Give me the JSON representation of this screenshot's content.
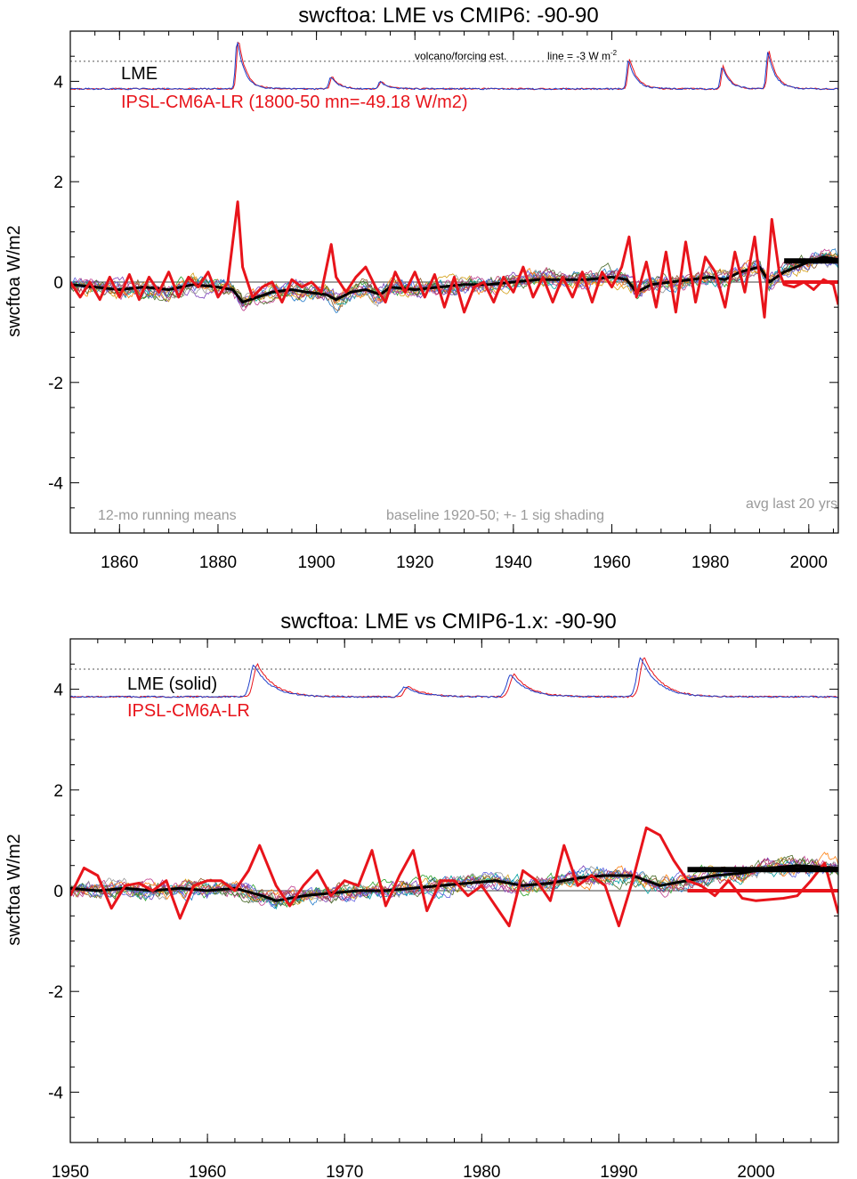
{
  "chart_data": [
    {
      "type": "line",
      "title": "swcftoa: LME vs CMIP6: -90-90",
      "ylabel": "swcftoa W/m2",
      "xlim": [
        1850,
        2006
      ],
      "ylim": [
        -5,
        5
      ],
      "xticks": [
        1860,
        1880,
        1900,
        1920,
        1940,
        1960,
        1980,
        2000
      ],
      "yticks": [
        -4,
        -2,
        0,
        2,
        4
      ],
      "ytick_labels": [
        "-4",
        "-2",
        "0",
        "2",
        "4"
      ],
      "legend": [
        "LME",
        "IPSL-CM6A-LR (1800-50 mn=-49.18 W/m2)"
      ],
      "annotations": {
        "volcano": "volcano/forcing est.",
        "line_note": "line = -3 W m",
        "line_note_sup": "-2",
        "running": "12-mo running means",
        "baseline": "baseline 1920-50; +- 1 sig shading",
        "avg": "avg last 20 yrs"
      },
      "reference_line_y": 4.4,
      "forcing_baseline": 3.85,
      "volcano_peaks": [
        {
          "x": 1884,
          "y": 4.85
        },
        {
          "x": 1903,
          "y": 4.1
        },
        {
          "x": 1913,
          "y": 4.0
        },
        {
          "x": 1963.5,
          "y": 4.45
        },
        {
          "x": 1982.5,
          "y": 4.3
        },
        {
          "x": 1991.8,
          "y": 4.6
        }
      ],
      "lme_mean": {
        "name": "LME",
        "points": [
          [
            1850,
            -0.05
          ],
          [
            1855,
            -0.1
          ],
          [
            1860,
            -0.15
          ],
          [
            1865,
            -0.1
          ],
          [
            1870,
            -0.15
          ],
          [
            1875,
            -0.05
          ],
          [
            1880,
            -0.1
          ],
          [
            1883,
            -0.15
          ],
          [
            1885,
            -0.4
          ],
          [
            1888,
            -0.3
          ],
          [
            1891,
            -0.2
          ],
          [
            1895,
            -0.15
          ],
          [
            1898,
            -0.2
          ],
          [
            1902,
            -0.25
          ],
          [
            1904,
            -0.35
          ],
          [
            1907,
            -0.2
          ],
          [
            1910,
            -0.15
          ],
          [
            1913,
            -0.25
          ],
          [
            1915,
            -0.1
          ],
          [
            1920,
            -0.15
          ],
          [
            1925,
            -0.1
          ],
          [
            1930,
            -0.05
          ],
          [
            1935,
            -0.05
          ],
          [
            1940,
            0.0
          ],
          [
            1945,
            0.05
          ],
          [
            1950,
            0.05
          ],
          [
            1955,
            0.05
          ],
          [
            1960,
            0.1
          ],
          [
            1963,
            0.05
          ],
          [
            1965,
            -0.2
          ],
          [
            1968,
            -0.05
          ],
          [
            1972,
            0.0
          ],
          [
            1976,
            0.05
          ],
          [
            1980,
            0.1
          ],
          [
            1983,
            0.05
          ],
          [
            1986,
            0.2
          ],
          [
            1990,
            0.3
          ],
          [
            1992,
            0.0
          ],
          [
            1995,
            0.2
          ],
          [
            2000,
            0.4
          ],
          [
            2003,
            0.5
          ],
          [
            2006,
            0.45
          ]
        ]
      },
      "ipsl_mean": {
        "name": "IPSL-CM6A-LR (1800-50 mn=-49.18 W/m2)",
        "points": [
          [
            1850,
            0.0
          ],
          [
            1852,
            -0.3
          ],
          [
            1854,
            0.0
          ],
          [
            1856,
            -0.35
          ],
          [
            1858,
            0.1
          ],
          [
            1860,
            -0.3
          ],
          [
            1862,
            0.15
          ],
          [
            1864,
            -0.35
          ],
          [
            1866,
            0.1
          ],
          [
            1868,
            -0.2
          ],
          [
            1870,
            0.2
          ],
          [
            1872,
            -0.3
          ],
          [
            1874,
            0.1
          ],
          [
            1876,
            -0.1
          ],
          [
            1878,
            0.2
          ],
          [
            1880,
            -0.3
          ],
          [
            1882,
            0.0
          ],
          [
            1884,
            1.6
          ],
          [
            1885,
            0.3
          ],
          [
            1887,
            -0.3
          ],
          [
            1889,
            -0.1
          ],
          [
            1891,
            0.0
          ],
          [
            1893,
            -0.4
          ],
          [
            1895,
            0.05
          ],
          [
            1897,
            -0.1
          ],
          [
            1899,
            0.0
          ],
          [
            1901,
            -0.2
          ],
          [
            1903,
            0.75
          ],
          [
            1904,
            0.1
          ],
          [
            1906,
            -0.2
          ],
          [
            1908,
            0.1
          ],
          [
            1910,
            0.3
          ],
          [
            1912,
            -0.1
          ],
          [
            1914,
            -0.4
          ],
          [
            1916,
            0.2
          ],
          [
            1918,
            -0.2
          ],
          [
            1920,
            0.2
          ],
          [
            1922,
            -0.3
          ],
          [
            1924,
            0.15
          ],
          [
            1926,
            -0.5
          ],
          [
            1928,
            0.1
          ],
          [
            1930,
            -0.6
          ],
          [
            1932,
            -0.1
          ],
          [
            1934,
            0.0
          ],
          [
            1936,
            -0.4
          ],
          [
            1938,
            0.1
          ],
          [
            1940,
            -0.2
          ],
          [
            1942,
            0.3
          ],
          [
            1944,
            -0.3
          ],
          [
            1946,
            0.1
          ],
          [
            1948,
            -0.4
          ],
          [
            1950,
            0.1
          ],
          [
            1952,
            -0.3
          ],
          [
            1954,
            0.2
          ],
          [
            1956,
            -0.4
          ],
          [
            1958,
            0.2
          ],
          [
            1960,
            -0.1
          ],
          [
            1962,
            0.3
          ],
          [
            1963.5,
            0.9
          ],
          [
            1965,
            -0.3
          ],
          [
            1967,
            0.4
          ],
          [
            1969,
            -0.5
          ],
          [
            1971,
            0.6
          ],
          [
            1973,
            -0.6
          ],
          [
            1975,
            0.8
          ],
          [
            1977,
            -0.4
          ],
          [
            1979,
            0.5
          ],
          [
            1981,
            0.2
          ],
          [
            1983,
            -0.5
          ],
          [
            1985,
            0.6
          ],
          [
            1987,
            -0.2
          ],
          [
            1989,
            0.9
          ],
          [
            1991,
            -0.7
          ],
          [
            1992.5,
            1.25
          ],
          [
            1994,
            0.2
          ],
          [
            1995,
            -0.05
          ],
          [
            1997,
            -0.1
          ],
          [
            1999,
            0.0
          ],
          [
            2001,
            -0.15
          ],
          [
            2003,
            0.05
          ],
          [
            2005,
            -0.05
          ],
          [
            2006,
            -0.45
          ]
        ]
      },
      "avg_last_20": {
        "x_start": 1995,
        "x_end": 2006,
        "lme": 0.42,
        "ipsl": 0.0
      }
    },
    {
      "type": "line",
      "title": "swcftoa: LME vs CMIP6-1.x: -90-90",
      "ylabel": "swcftoa W/m2",
      "xlim": [
        1950,
        2006
      ],
      "ylim": [
        -5,
        5
      ],
      "xticks": [
        1950,
        1960,
        1970,
        1980,
        1990,
        2000
      ],
      "yticks": [
        -4,
        -2,
        0,
        2,
        4
      ],
      "ytick_labels": [
        "-4",
        "-2",
        "0",
        "2",
        "4"
      ],
      "legend": [
        "LME (solid)",
        "IPSL-CM6A-LR"
      ],
      "reference_line_y": 4.4,
      "forcing_baseline": 3.85,
      "volcano_peaks": [
        {
          "x": 1963.5,
          "y": 4.5
        },
        {
          "x": 1974.5,
          "y": 4.05
        },
        {
          "x": 1982.2,
          "y": 4.3
        },
        {
          "x": 1991.7,
          "y": 4.65
        }
      ],
      "lme_mean": {
        "name": "LME (solid)",
        "points": [
          [
            1950,
            0.05
          ],
          [
            1952,
            0.0
          ],
          [
            1954,
            0.05
          ],
          [
            1956,
            0.0
          ],
          [
            1958,
            0.05
          ],
          [
            1960,
            0.0
          ],
          [
            1962,
            0.05
          ],
          [
            1964,
            -0.1
          ],
          [
            1965,
            -0.2
          ],
          [
            1967,
            -0.1
          ],
          [
            1969,
            -0.05
          ],
          [
            1971,
            0.0
          ],
          [
            1973,
            0.0
          ],
          [
            1975,
            0.05
          ],
          [
            1977,
            0.1
          ],
          [
            1979,
            0.15
          ],
          [
            1981,
            0.2
          ],
          [
            1983,
            0.1
          ],
          [
            1985,
            0.15
          ],
          [
            1987,
            0.25
          ],
          [
            1989,
            0.3
          ],
          [
            1991,
            0.3
          ],
          [
            1993,
            0.1
          ],
          [
            1995,
            0.2
          ],
          [
            1997,
            0.3
          ],
          [
            1999,
            0.35
          ],
          [
            2001,
            0.45
          ],
          [
            2003,
            0.5
          ],
          [
            2006,
            0.45
          ]
        ]
      },
      "ipsl_mean": {
        "name": "IPSL-CM6A-LR",
        "points": [
          [
            1950,
            -0.1
          ],
          [
            1951,
            0.45
          ],
          [
            1952,
            0.3
          ],
          [
            1953,
            -0.35
          ],
          [
            1954,
            0.1
          ],
          [
            1955,
            0.15
          ],
          [
            1956,
            0.0
          ],
          [
            1957,
            0.2
          ],
          [
            1958,
            -0.55
          ],
          [
            1959,
            0.1
          ],
          [
            1960,
            0.2
          ],
          [
            1961,
            0.2
          ],
          [
            1962,
            0.0
          ],
          [
            1963,
            0.4
          ],
          [
            1963.8,
            0.9
          ],
          [
            1965,
            0.1
          ],
          [
            1966,
            -0.3
          ],
          [
            1967,
            0.1
          ],
          [
            1968,
            0.4
          ],
          [
            1969,
            -0.1
          ],
          [
            1970,
            0.2
          ],
          [
            1971,
            0.1
          ],
          [
            1972,
            0.8
          ],
          [
            1973,
            -0.3
          ],
          [
            1974,
            0.3
          ],
          [
            1975,
            0.8
          ],
          [
            1976,
            -0.4
          ],
          [
            1977,
            0.2
          ],
          [
            1978,
            0.2
          ],
          [
            1979,
            -0.1
          ],
          [
            1980,
            0.1
          ],
          [
            1981,
            -0.3
          ],
          [
            1982,
            -0.7
          ],
          [
            1983,
            0.4
          ],
          [
            1984,
            0.2
          ],
          [
            1985,
            -0.2
          ],
          [
            1986,
            0.9
          ],
          [
            1987,
            0.1
          ],
          [
            1988,
            0.3
          ],
          [
            1989,
            0.1
          ],
          [
            1990,
            -0.7
          ],
          [
            1991,
            0.2
          ],
          [
            1992,
            1.25
          ],
          [
            1993,
            1.1
          ],
          [
            1994,
            0.6
          ],
          [
            1995,
            0.2
          ],
          [
            1996,
            0.1
          ],
          [
            1997,
            -0.1
          ],
          [
            1998,
            0.2
          ],
          [
            1999,
            -0.15
          ],
          [
            2000,
            -0.2
          ],
          [
            2002,
            -0.15
          ],
          [
            2003,
            -0.1
          ],
          [
            2004,
            0.2
          ],
          [
            2005,
            0.55
          ],
          [
            2006,
            -0.45
          ]
        ]
      },
      "avg_last_20": {
        "x_start": 1995,
        "x_end": 2006,
        "lme": 0.42,
        "ipsl": 0.0
      }
    }
  ],
  "colors": {
    "lme": "#000000",
    "ipsl": "#e8141b",
    "forcing_lme": "#1f3fc9",
    "forcing_ipsl": "#e8141b",
    "members": [
      "#2aa02a",
      "#7b3fb8",
      "#1f78c8",
      "#d4a017",
      "#8c5a2b",
      "#00a0a0",
      "#c04090",
      "#999999",
      "#ff7f0e",
      "#4a6b2a",
      "#6060e0",
      "#b03060"
    ]
  }
}
